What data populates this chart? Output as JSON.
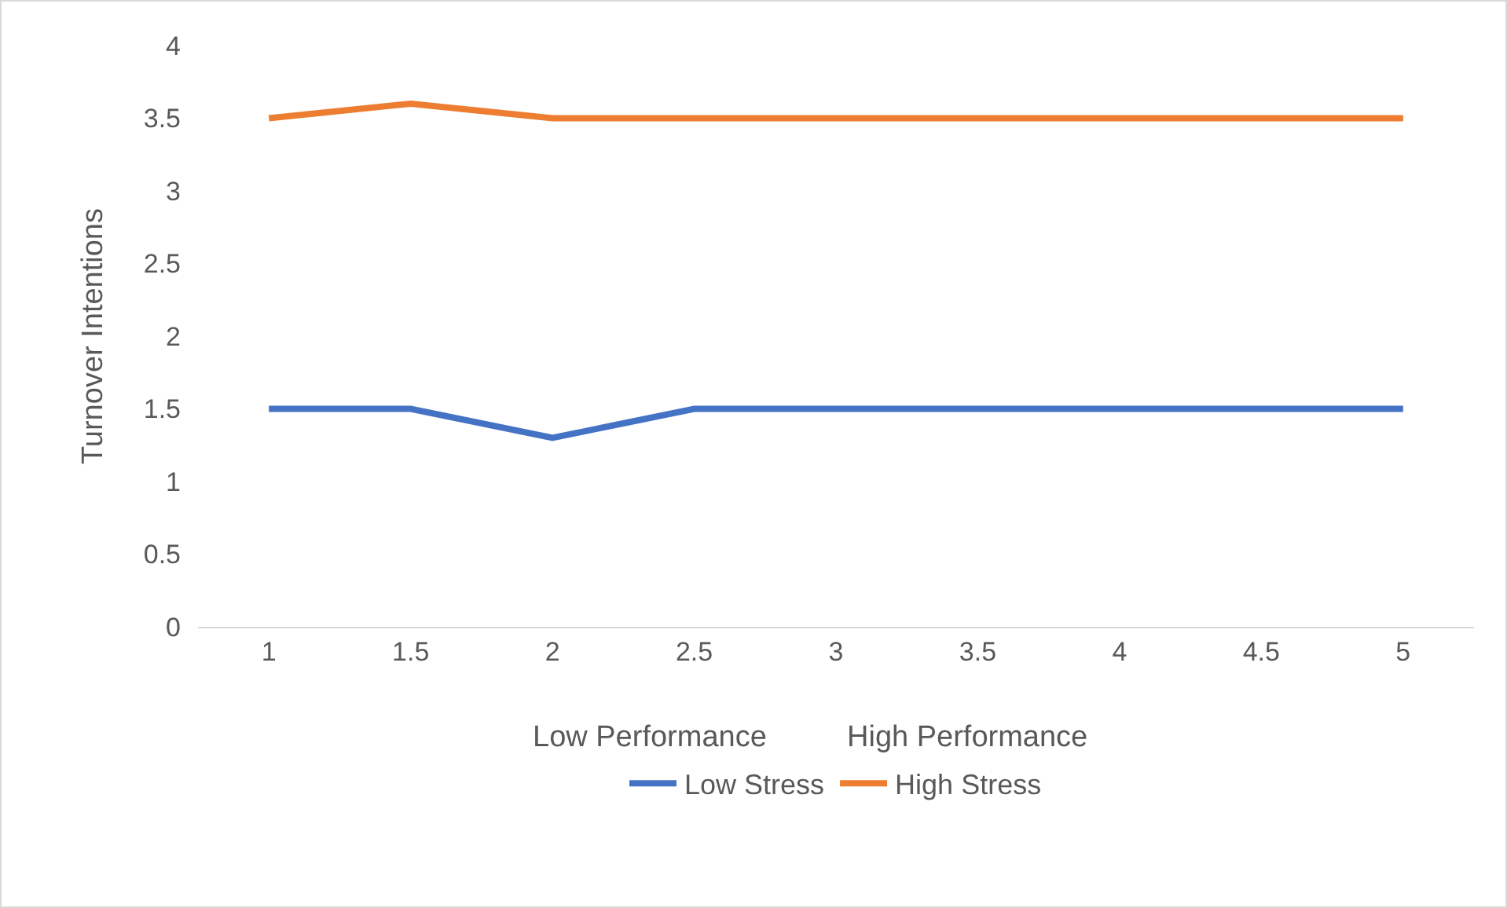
{
  "chart_data": {
    "type": "line",
    "ylabel": "Turnover Intentions",
    "categories": [
      "1",
      "1.5",
      "2",
      "2.5",
      "3",
      "3.5",
      "4",
      "4.5",
      "5"
    ],
    "series": [
      {
        "name": "Low Stress",
        "color": "#4472c4",
        "values": [
          1.5,
          1.5,
          1.3,
          1.5,
          1.5,
          1.5,
          1.5,
          1.5,
          1.5
        ]
      },
      {
        "name": "High Stress",
        "color": "#ed7d31",
        "values": [
          3.5,
          3.6,
          3.5,
          3.5,
          3.5,
          3.5,
          3.5,
          3.5,
          3.5
        ]
      }
    ],
    "ylim": [
      0,
      4
    ],
    "yticks": [
      0,
      0.5,
      1,
      1.5,
      2,
      2.5,
      3,
      3.5,
      4
    ],
    "grid": false,
    "legend": "bottom",
    "marker": "none",
    "line_style": "solid",
    "annotations": [
      "Low Performance",
      "High Performance"
    ]
  }
}
